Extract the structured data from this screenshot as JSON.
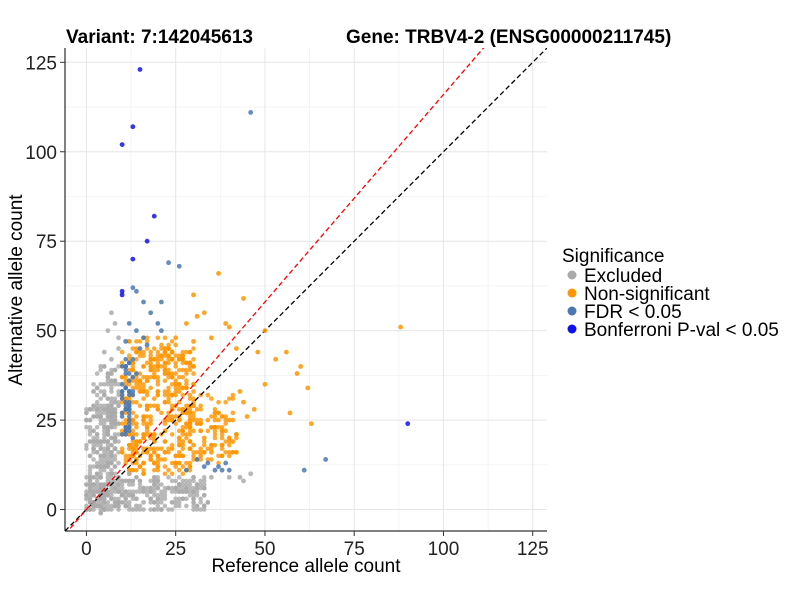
{
  "chart_data": {
    "type": "scatter",
    "title_left": "Variant: 7:142045613",
    "title_right": "Gene: TRBV4-2 (ENSG00000211745)",
    "xlabel": "Reference allele count",
    "ylabel": "Alternative allele count",
    "xlim": [
      -6,
      129
    ],
    "ylim": [
      -6,
      129
    ],
    "x_ticks": [
      0,
      25,
      50,
      75,
      100,
      125
    ],
    "y_ticks": [
      0,
      25,
      50,
      75,
      100,
      125
    ],
    "grid": true,
    "reference_lines": [
      {
        "name": "identity",
        "slope": 1,
        "intercept": 0,
        "color": "#000000",
        "style": "dashed"
      },
      {
        "name": "fitted",
        "slope": 1.16,
        "intercept": 0,
        "color": "#ff0000",
        "style": "dashed"
      }
    ],
    "legend": {
      "title": "Significance",
      "placement": "right",
      "entries": [
        {
          "label": "Excluded",
          "color": "#aaaaaa"
        },
        {
          "label": "Non-significant",
          "color": "#ff9500"
        },
        {
          "label": "FDR < 0.05",
          "color": "#4a78b0"
        },
        {
          "label": "Bonferroni P-val < 0.05",
          "color": "#1010ee"
        }
      ]
    },
    "series": [
      {
        "name": "Bonferroni P-val < 0.05",
        "color": "#1010ee",
        "points": [
          [
            15,
            123
          ],
          [
            13,
            107
          ],
          [
            10,
            102
          ],
          [
            19,
            82
          ],
          [
            17,
            75
          ],
          [
            13,
            70
          ],
          [
            10,
            61
          ],
          [
            10,
            60
          ],
          [
            90,
            24
          ]
        ]
      },
      {
        "name": "FDR < 0.05",
        "color": "#4a78b0",
        "points": [
          [
            46,
            111
          ],
          [
            23,
            69
          ],
          [
            26,
            68
          ],
          [
            13,
            62
          ],
          [
            14,
            61
          ],
          [
            16,
            58
          ],
          [
            21,
            58
          ],
          [
            18,
            55
          ],
          [
            20,
            52
          ],
          [
            12,
            52
          ],
          [
            14,
            50
          ],
          [
            16,
            48
          ],
          [
            21,
            50
          ],
          [
            11,
            47
          ],
          [
            15,
            45
          ],
          [
            17,
            46
          ],
          [
            13,
            42
          ],
          [
            11,
            40
          ],
          [
            14,
            38
          ],
          [
            12,
            36
          ],
          [
            10,
            35
          ],
          [
            13,
            33
          ],
          [
            10,
            32
          ],
          [
            11,
            30
          ],
          [
            12,
            28
          ],
          [
            10,
            27
          ],
          [
            61,
            11
          ],
          [
            67,
            14
          ],
          [
            40,
            11
          ],
          [
            38,
            11
          ],
          [
            37,
            12
          ],
          [
            34,
            13
          ],
          [
            33,
            12
          ],
          [
            31,
            14
          ],
          [
            28,
            11
          ],
          [
            36,
            11
          ],
          [
            39,
            13
          ]
        ]
      },
      {
        "name": "Non-significant",
        "color": "#ff9500",
        "points": [
          [
            37,
            66
          ],
          [
            44,
            59
          ],
          [
            31,
            54
          ],
          [
            39,
            52
          ],
          [
            40,
            51
          ],
          [
            50,
            50
          ],
          [
            42,
            45
          ],
          [
            48,
            44
          ],
          [
            53,
            42
          ],
          [
            59,
            38
          ],
          [
            60,
            40
          ],
          [
            56,
            44
          ],
          [
            50,
            35
          ],
          [
            43,
            33
          ],
          [
            62,
            34
          ],
          [
            63,
            24
          ],
          [
            57,
            27
          ],
          [
            44,
            30
          ],
          [
            88,
            51
          ],
          [
            30,
            60
          ],
          [
            33,
            55
          ],
          [
            35,
            48
          ],
          [
            28,
            52
          ],
          [
            25,
            48
          ],
          [
            30,
            47
          ],
          [
            45,
            26
          ],
          [
            47,
            28
          ],
          [
            40,
            25
          ],
          [
            38,
            22
          ],
          [
            42,
            21
          ],
          [
            36,
            23
          ],
          [
            33,
            20
          ],
          [
            30,
            18
          ],
          [
            27,
            19
          ],
          [
            24,
            17
          ],
          [
            20,
            15
          ],
          [
            18,
            14
          ],
          [
            15,
            12
          ],
          [
            12,
            11
          ],
          [
            35,
            16
          ],
          [
            32,
            15
          ],
          [
            38,
            18
          ],
          [
            41,
            19
          ]
        ]
      },
      {
        "name": "Excluded",
        "color": "#aaaaaa",
        "points": [
          [
            7,
            55
          ],
          [
            8,
            52
          ],
          [
            6,
            50
          ],
          [
            9,
            48
          ],
          [
            5,
            44
          ],
          [
            7,
            42
          ],
          [
            4,
            40
          ],
          [
            8,
            39
          ],
          [
            6,
            37
          ],
          [
            9,
            45
          ],
          [
            3,
            34
          ],
          [
            5,
            32
          ],
          [
            7,
            30
          ],
          [
            4,
            28
          ],
          [
            12,
            10
          ],
          [
            30,
            9
          ],
          [
            35,
            9
          ],
          [
            40,
            9
          ],
          [
            44,
            8
          ],
          [
            46,
            10
          ],
          [
            43,
            9
          ],
          [
            2,
            2
          ],
          [
            1,
            0
          ],
          [
            0,
            3
          ],
          [
            2,
            5
          ],
          [
            3,
            1
          ],
          [
            1,
            4
          ],
          [
            14,
            1
          ],
          [
            13,
            0
          ],
          [
            16,
            2
          ],
          [
            4,
            -1
          ],
          [
            5,
            0
          ],
          [
            8,
            1
          ]
        ]
      }
    ]
  }
}
